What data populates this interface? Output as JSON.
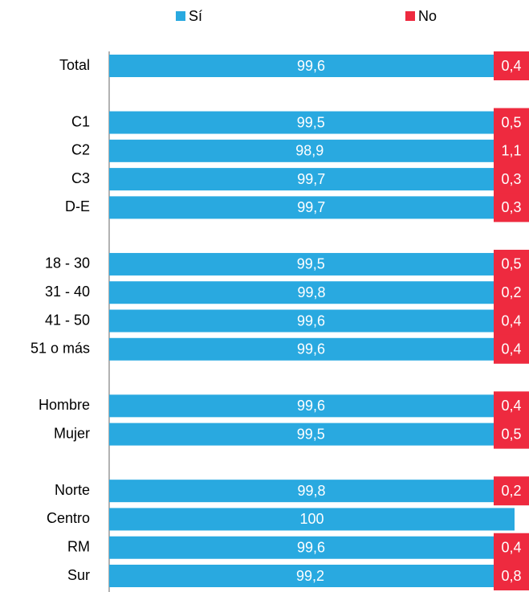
{
  "chart_data": {
    "type": "stacked-bar-horizontal",
    "categories": [
      "Total",
      null,
      "C1",
      "C2",
      "C3",
      "D-E",
      null,
      "18 - 30",
      "31 - 40",
      "41 - 50",
      "51 o más",
      null,
      "Hombre",
      "Mujer",
      null,
      "Norte",
      "Centro",
      "RM",
      "Sur"
    ],
    "series": [
      {
        "name": "Sí",
        "color": "#29a9e0",
        "values": [
          99.6,
          null,
          99.5,
          98.9,
          99.7,
          99.7,
          null,
          99.5,
          99.8,
          99.6,
          99.6,
          null,
          99.6,
          99.5,
          null,
          99.8,
          100,
          99.6,
          99.2
        ],
        "value_labels": [
          "99,6",
          null,
          "99,5",
          "98,9",
          "99,7",
          "99,7",
          null,
          "99,5",
          "99,8",
          "99,6",
          "99,6",
          null,
          "99,6",
          "99,5",
          null,
          "99,8",
          "100",
          "99,6",
          "99,2"
        ]
      },
      {
        "name": "No",
        "color": "#ee2a3f",
        "values": [
          0.4,
          null,
          0.5,
          1.1,
          0.3,
          0.3,
          null,
          0.5,
          0.2,
          0.4,
          0.4,
          null,
          0.4,
          0.5,
          null,
          0.2,
          null,
          0.4,
          0.8
        ],
        "value_labels": [
          "0,4",
          null,
          "0,5",
          "1,1",
          "0,3",
          "0,3",
          null,
          "0,5",
          "0,2",
          "0,4",
          "0,4",
          null,
          "0,4",
          "0,5",
          null,
          "0,2",
          null,
          "0,4",
          "0,8"
        ]
      }
    ],
    "xlim": [
      0,
      100
    ],
    "legend": "top"
  }
}
